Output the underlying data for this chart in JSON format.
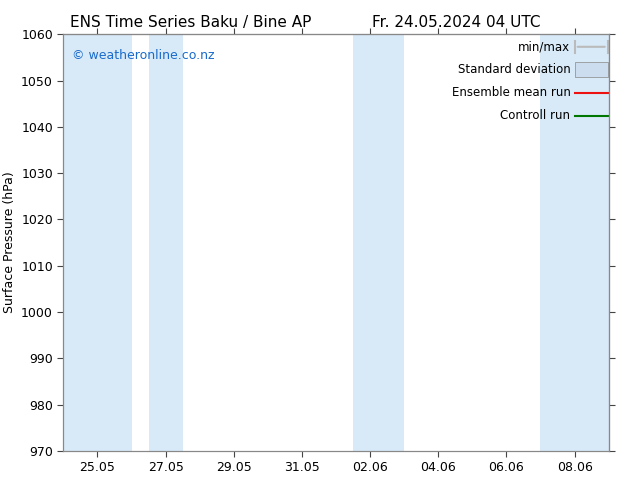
{
  "title_left": "ENS Time Series Baku / Bine AP",
  "title_right": "Fr. 24.05.2024 04 UTC",
  "ylabel": "Surface Pressure (hPa)",
  "ylim": [
    970,
    1060
  ],
  "yticks": [
    970,
    980,
    990,
    1000,
    1010,
    1020,
    1030,
    1040,
    1050,
    1060
  ],
  "xtick_labels": [
    "25.05",
    "27.05",
    "29.05",
    "31.05",
    "02.06",
    "04.06",
    "06.06",
    "08.06"
  ],
  "xtick_positions": [
    1,
    3,
    5,
    7,
    9,
    11,
    13,
    15
  ],
  "xlim": [
    0,
    16
  ],
  "shaded_bands": [
    {
      "x_start": 0.0,
      "x_end": 2.0
    },
    {
      "x_start": 2.5,
      "x_end": 3.5
    },
    {
      "x_start": 8.5,
      "x_end": 10.0
    },
    {
      "x_start": 14.0,
      "x_end": 16.0
    }
  ],
  "band_color": "#d8eaf8",
  "background_color": "#ffffff",
  "watermark": "© weatheronline.co.nz",
  "watermark_color": "#1a6bcc",
  "legend_items": [
    {
      "label": "min/max",
      "color": "#bbbbbb",
      "type": "errorbar"
    },
    {
      "label": "Standard deviation",
      "color": "#ccddf0",
      "type": "band"
    },
    {
      "label": "Ensemble mean run",
      "color": "#ee1111",
      "type": "line"
    },
    {
      "label": "Controll run",
      "color": "#007700",
      "type": "line"
    }
  ],
  "spine_color": "#888888",
  "tick_color": "#444444",
  "font_size_title": 11,
  "font_size_axis": 9,
  "font_size_tick": 9,
  "font_size_legend": 8.5,
  "font_size_watermark": 9
}
